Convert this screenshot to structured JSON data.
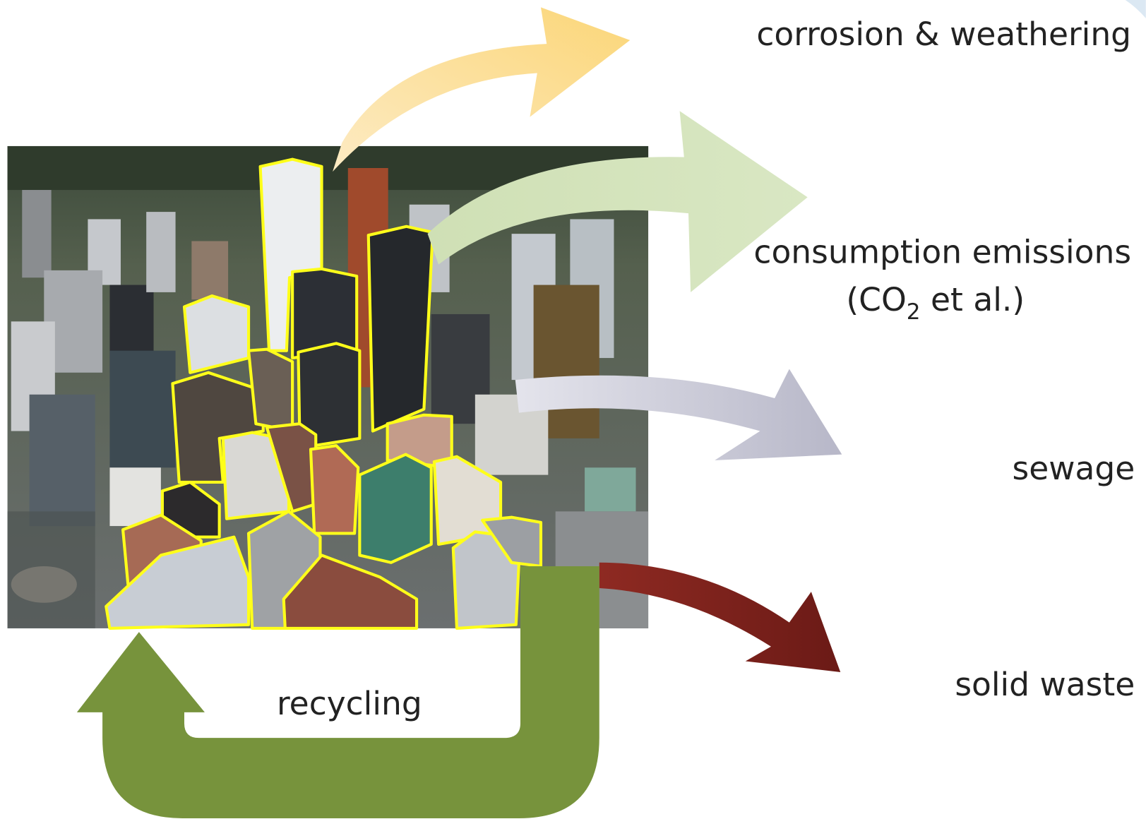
{
  "outputs": {
    "corrosion": "corrosion & weathering",
    "emissions": {
      "line1": "consumption emissions",
      "line2_prefix": "(CO",
      "line2_subscript": "2",
      "line2_suffix": " et al.)"
    },
    "sewage": "sewage",
    "solid_waste": "solid waste"
  },
  "recycling": "recycling"
}
